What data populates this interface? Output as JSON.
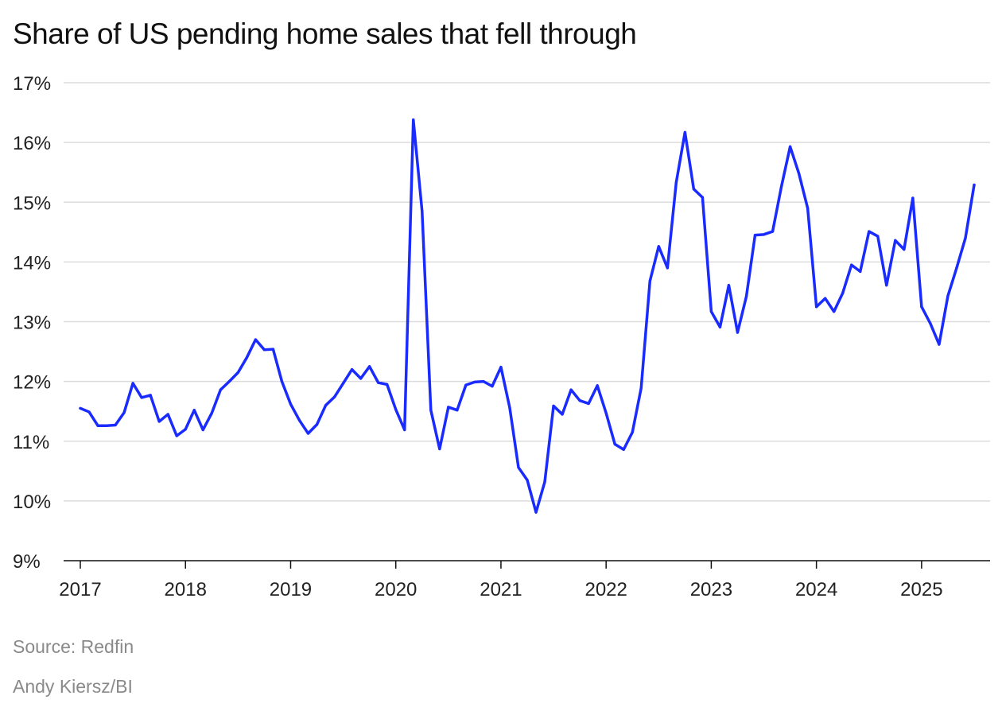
{
  "title": "Share of US pending home sales that fell through",
  "source": "Source: Redfin",
  "credit": "Andy Kiersz/BI",
  "colors": {
    "line": "#1a2bff",
    "grid": "#dcdcdc",
    "axis": "#111111"
  },
  "chart_data": {
    "type": "line",
    "title": "Share of US pending home sales that fell through",
    "xlabel": "",
    "ylabel": "",
    "y_ticks": [
      "9%",
      "10%",
      "11%",
      "12%",
      "13%",
      "14%",
      "15%",
      "16%",
      "17%"
    ],
    "ylim": [
      9,
      17
    ],
    "x_ticks": [
      "2017",
      "2018",
      "2019",
      "2020",
      "2021",
      "2022",
      "2023",
      "2024",
      "2025"
    ],
    "xlim": [
      "2017-01",
      "2025-07"
    ],
    "grid": true,
    "series": [
      {
        "x": [
          "2017-01",
          "2017-02",
          "2017-03",
          "2017-04",
          "2017-05",
          "2017-06",
          "2017-07",
          "2017-08",
          "2017-09",
          "2017-10",
          "2017-11",
          "2017-12",
          "2018-01",
          "2018-02",
          "2018-03",
          "2018-04",
          "2018-05",
          "2018-06",
          "2018-07",
          "2018-08",
          "2018-09",
          "2018-10",
          "2018-11",
          "2018-12",
          "2019-01",
          "2019-02",
          "2019-03",
          "2019-04",
          "2019-05",
          "2019-06",
          "2019-07",
          "2019-08",
          "2019-09",
          "2019-10",
          "2019-11",
          "2019-12",
          "2020-01",
          "2020-02",
          "2020-03",
          "2020-04",
          "2020-05",
          "2020-06",
          "2020-07",
          "2020-08",
          "2020-09",
          "2020-10",
          "2020-11",
          "2020-12",
          "2021-01",
          "2021-02",
          "2021-03",
          "2021-04",
          "2021-05",
          "2021-06",
          "2021-07",
          "2021-08",
          "2021-09",
          "2021-10",
          "2021-11",
          "2021-12",
          "2022-01",
          "2022-02",
          "2022-03",
          "2022-04",
          "2022-05",
          "2022-06",
          "2022-07",
          "2022-08",
          "2022-09",
          "2022-10",
          "2022-11",
          "2022-12",
          "2023-01",
          "2023-02",
          "2023-03",
          "2023-04",
          "2023-05",
          "2023-06",
          "2023-07",
          "2023-08",
          "2023-09",
          "2023-10",
          "2023-11",
          "2023-12",
          "2024-01",
          "2024-02",
          "2024-03",
          "2024-04",
          "2024-05",
          "2024-06",
          "2024-07",
          "2024-08",
          "2024-09",
          "2024-10",
          "2024-11",
          "2024-12",
          "2025-01",
          "2025-02",
          "2025-03",
          "2025-04",
          "2025-05",
          "2025-06",
          "2025-07"
        ],
        "values": [
          11.55,
          11.49,
          11.26,
          11.26,
          11.27,
          11.48,
          11.97,
          11.73,
          11.77,
          11.33,
          11.45,
          11.09,
          11.2,
          11.52,
          11.19,
          11.47,
          11.86,
          12.0,
          12.15,
          12.4,
          12.7,
          12.53,
          12.54,
          12.0,
          11.62,
          11.35,
          11.13,
          11.28,
          11.6,
          11.74,
          11.97,
          12.2,
          12.05,
          12.25,
          11.98,
          11.95,
          11.53,
          11.19,
          16.38,
          14.85,
          11.52,
          10.87,
          11.57,
          11.52,
          11.94,
          11.99,
          12.0,
          11.92,
          12.24,
          11.56,
          10.56,
          10.35,
          9.81,
          10.32,
          11.59,
          11.45,
          11.86,
          11.68,
          11.63,
          11.93,
          11.47,
          10.95,
          10.86,
          11.15,
          11.89,
          13.68,
          14.26,
          13.9,
          15.33,
          16.17,
          15.22,
          15.08,
          13.17,
          12.91,
          13.61,
          12.82,
          13.42,
          14.45,
          14.46,
          14.51,
          15.26,
          15.93,
          15.48,
          14.9,
          13.25,
          13.39,
          13.17,
          13.48,
          13.95,
          13.84,
          14.51,
          14.43,
          13.61,
          14.36,
          14.21,
          15.07,
          13.25,
          12.97,
          12.62,
          13.43,
          13.9,
          14.4,
          15.29
        ]
      }
    ]
  }
}
